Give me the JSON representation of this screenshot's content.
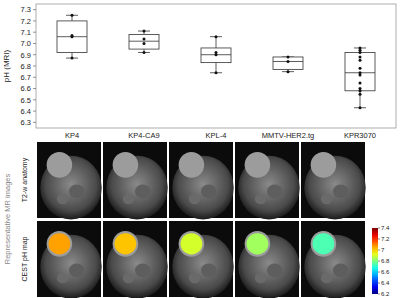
{
  "chart_data": {
    "type": "box",
    "ylabel": "pH (MRI)",
    "categories": [
      "KP4",
      "KP4-CA9",
      "KPL-4",
      "MMTV-HER2.tg",
      "KPR3070"
    ],
    "boxes": [
      {
        "whisker_low": 6.87,
        "q1": 6.92,
        "median": 7.06,
        "q3": 7.2,
        "whisker_high": 7.25,
        "points": [
          7.25,
          7.07,
          7.06,
          6.87
        ]
      },
      {
        "whisker_low": 6.92,
        "q1": 6.95,
        "median": 7.02,
        "q3": 7.08,
        "whisker_high": 7.11,
        "points": [
          7.11,
          7.04,
          7.0,
          6.92
        ]
      },
      {
        "whisker_low": 6.74,
        "q1": 6.83,
        "median": 6.9,
        "q3": 6.96,
        "whisker_high": 7.06,
        "points": [
          7.06,
          6.92,
          6.9,
          6.74
        ]
      },
      {
        "whisker_low": 6.75,
        "q1": 6.77,
        "median": 6.84,
        "q3": 6.88,
        "whisker_high": 6.88,
        "points": [
          6.88,
          6.84,
          6.75
        ]
      },
      {
        "whisker_low": 6.43,
        "q1": 6.58,
        "median": 6.74,
        "q3": 6.92,
        "whisker_high": 6.96,
        "points": [
          6.96,
          6.94,
          6.92,
          6.88,
          6.85,
          6.78,
          6.74,
          6.72,
          6.65,
          6.6,
          6.58,
          6.55,
          6.43
        ]
      }
    ],
    "ylim": [
      6.25,
      7.35
    ],
    "yticks": [
      6.3,
      6.4,
      6.5,
      6.6,
      6.7,
      6.8,
      6.9,
      {
        "value": 7,
        "label": "7.0"
      },
      7.1,
      7.2,
      7.3
    ],
    "grid": false
  },
  "images": {
    "section_label": "Representative MR images",
    "row_labels": [
      "T2-w anatomy",
      "CEST pH map"
    ],
    "colorbar": {
      "range": [
        6.2,
        7.4
      ],
      "ticks": [
        7.4,
        7.2,
        7,
        6.8,
        6.6,
        6.4,
        6.2
      ]
    }
  }
}
